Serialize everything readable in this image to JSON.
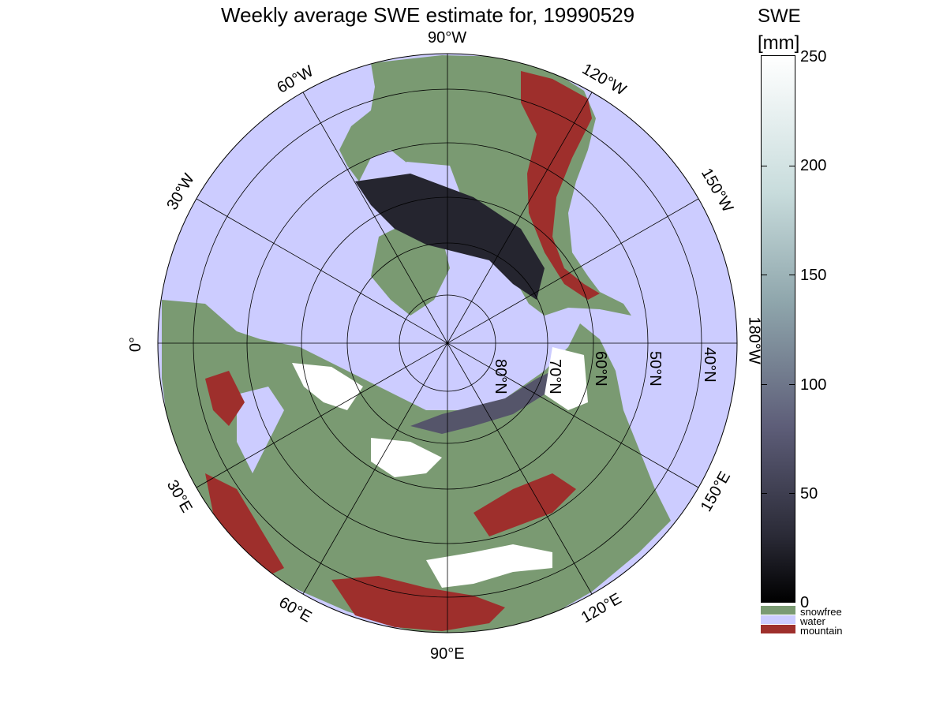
{
  "title": "Weekly average SWE estimate for, 19990529",
  "colorbar": {
    "title_line1": "SWE",
    "title_line2": "[mm]",
    "ticks": [
      "250",
      "200",
      "150",
      "100",
      "50",
      "0"
    ],
    "range": [
      0,
      250
    ],
    "categories": [
      {
        "label": "snowfree",
        "color": "#7a9a72"
      },
      {
        "label": "water",
        "color": "#ccccff"
      },
      {
        "label": "mountain",
        "color": "#9e2f2c"
      }
    ]
  },
  "map": {
    "projection": "north polar stereographic",
    "longitude_labels": [
      "90°W",
      "120°W",
      "150°W",
      "180°W",
      "150°E",
      "120°E",
      "90°E",
      "60°E",
      "30°E",
      "0°",
      "30°W",
      "60°W"
    ],
    "latitude_labels": [
      "80°N",
      "70°N",
      "60°N",
      "50°N",
      "40°N"
    ],
    "colors": {
      "water": "#ccccff",
      "snowfree": "#7a9a72",
      "mountain": "#9e2f2c",
      "shallow_snow": "#25252f",
      "medium_snow": "#55556a",
      "deep_snow": "#ffffff"
    }
  }
}
